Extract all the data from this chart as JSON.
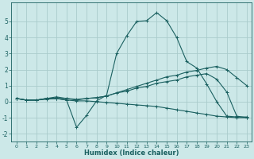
{
  "xlabel": "Humidex (Indice chaleur)",
  "xlim": [
    -0.5,
    23.5
  ],
  "ylim": [
    -2.5,
    6.2
  ],
  "yticks": [
    -2,
    -1,
    0,
    1,
    2,
    3,
    4,
    5
  ],
  "xticks": [
    0,
    1,
    2,
    3,
    4,
    5,
    6,
    7,
    8,
    9,
    10,
    11,
    12,
    13,
    14,
    15,
    16,
    17,
    18,
    19,
    20,
    21,
    22,
    23
  ],
  "bg_color": "#cce8e8",
  "grid_color": "#aacccc",
  "line_color": "#1a6060",
  "lines": [
    {
      "x": [
        0,
        1,
        2,
        3,
        4,
        5,
        6,
        7,
        8,
        9,
        10,
        11,
        12,
        13,
        14,
        15,
        16,
        17,
        18,
        19,
        20,
        21,
        22,
        23
      ],
      "y": [
        0.2,
        0.1,
        0.1,
        0.2,
        0.2,
        0.1,
        -1.6,
        -0.85,
        0.05,
        0.4,
        3.0,
        4.1,
        5.0,
        5.05,
        5.55,
        5.05,
        4.0,
        2.5,
        2.1,
        1.1,
        0.0,
        -0.9,
        -0.95,
        -0.95
      ]
    },
    {
      "x": [
        0,
        1,
        2,
        3,
        4,
        5,
        6,
        7,
        8,
        9,
        10,
        11,
        12,
        13,
        14,
        15,
        16,
        17,
        18,
        19,
        20,
        21,
        22,
        23
      ],
      "y": [
        0.2,
        0.1,
        0.1,
        0.2,
        0.2,
        0.2,
        0.15,
        0.2,
        0.25,
        0.35,
        0.55,
        0.75,
        0.95,
        1.15,
        1.35,
        1.55,
        1.65,
        1.85,
        1.95,
        2.1,
        2.2,
        2.0,
        1.5,
        1.0
      ]
    },
    {
      "x": [
        0,
        1,
        2,
        3,
        4,
        5,
        6,
        7,
        8,
        9,
        10,
        11,
        12,
        13,
        14,
        15,
        16,
        17,
        18,
        19,
        20,
        21,
        22,
        23
      ],
      "y": [
        0.2,
        0.1,
        0.1,
        0.15,
        0.2,
        0.1,
        0.05,
        0.05,
        0.0,
        -0.05,
        -0.1,
        -0.15,
        -0.2,
        -0.25,
        -0.3,
        -0.4,
        -0.5,
        -0.6,
        -0.7,
        -0.8,
        -0.9,
        -0.95,
        -1.0,
        -1.0
      ]
    },
    {
      "x": [
        0,
        1,
        2,
        3,
        4,
        5,
        6,
        7,
        8,
        9,
        10,
        11,
        12,
        13,
        14,
        15,
        16,
        17,
        18,
        19,
        20,
        21,
        22,
        23
      ],
      "y": [
        0.2,
        0.1,
        0.1,
        0.2,
        0.3,
        0.2,
        0.1,
        0.2,
        0.25,
        0.35,
        0.55,
        0.65,
        0.85,
        0.95,
        1.15,
        1.25,
        1.35,
        1.55,
        1.65,
        1.75,
        1.4,
        0.6,
        -0.9,
        -1.0
      ]
    }
  ]
}
